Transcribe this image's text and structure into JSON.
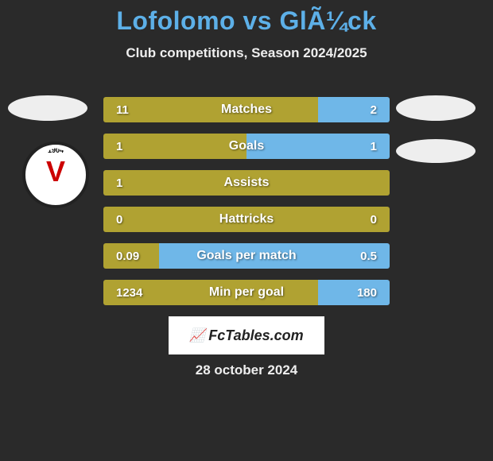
{
  "title": "Lofolomo vs GlÃ¼ck",
  "subtitle": "Club competitions, Season 2024/2025",
  "crest_year": "1904",
  "crest_letter": "V",
  "colors": {
    "left_bar": "#b0a232",
    "right_bar": "#6fb7e8",
    "left_too_small_bar": "#b0a232",
    "full_bar": "#b0a232",
    "title": "#5db0e8",
    "text": "#ffffff",
    "bg": "#2a2a2a",
    "watermark_bg": "#ffffff"
  },
  "stats": [
    {
      "label": "Matches",
      "left_val": "11",
      "right_val": "2",
      "left_width": 270,
      "right_width": 90
    },
    {
      "label": "Goals",
      "left_val": "1",
      "right_val": "1",
      "left_width": 180,
      "right_width": 180
    },
    {
      "label": "Assists",
      "left_val": "1",
      "right_val": "",
      "left_width": 360,
      "right_width": 0
    },
    {
      "label": "Hattricks",
      "left_val": "0",
      "right_val": "0",
      "left_width": 360,
      "right_width": 0
    },
    {
      "label": "Goals per match",
      "left_val": "0.09",
      "right_val": "0.5",
      "left_width": 70,
      "right_width": 290
    },
    {
      "label": "Min per goal",
      "left_val": "1234",
      "right_val": "180",
      "left_width": 270,
      "right_width": 90
    }
  ],
  "watermark": "FcTables.com",
  "date": "28 october 2024"
}
